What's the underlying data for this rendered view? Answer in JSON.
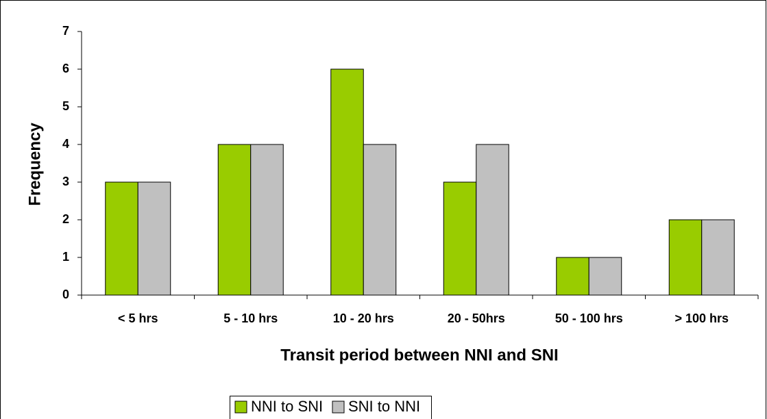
{
  "chart_data": {
    "type": "bar",
    "x_label": "Transit period between NNI and SNI",
    "y_label": "Frequency",
    "categories": [
      "< 5 hrs",
      "5 - 10 hrs",
      "10 - 20 hrs",
      "20 - 50hrs",
      "50 - 100 hrs",
      "> 100 hrs"
    ],
    "series": [
      {
        "name": "NNI to SNI",
        "color": "#99cc00",
        "values": [
          3,
          4,
          6,
          3,
          1,
          2
        ]
      },
      {
        "name": "SNI to NNI",
        "color": "#c0c0c0",
        "values": [
          3,
          4,
          4,
          4,
          1,
          2
        ]
      }
    ],
    "ylim": [
      0,
      7
    ],
    "yticks": [
      0,
      1,
      2,
      3,
      4,
      5,
      6,
      7
    ],
    "grid": false,
    "legend": "bottom"
  }
}
